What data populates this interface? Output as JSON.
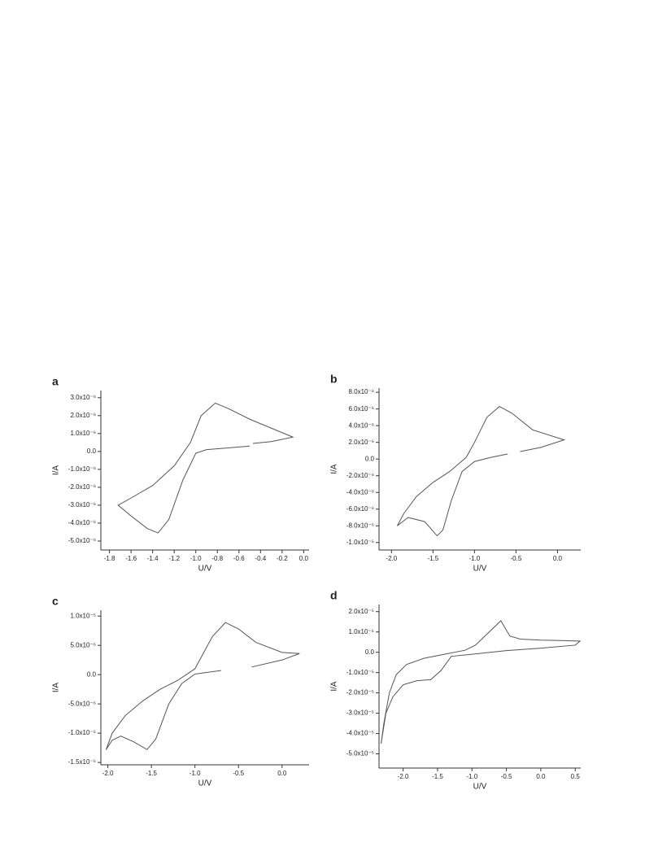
{
  "chart_data": [
    {
      "type": "line",
      "panel": "a",
      "xlabel": "U/V",
      "ylabel": "I/A",
      "xlim": [
        -1.88,
        0.05
      ],
      "ylim": [
        -5.5e-06,
        3.4e-06
      ],
      "xticks": [
        -1.8,
        -1.6,
        -1.4,
        -1.2,
        {
          "value": -1,
          "label": "-1.0"
        },
        -0.8,
        -0.6,
        -0.4,
        -0.2,
        {
          "value": 0,
          "label": "0.0"
        }
      ],
      "yticks": [
        {
          "value": 3e-06,
          "label": "3.0x10⁻⁶"
        },
        {
          "value": 2e-06,
          "label": "2.0x10⁻⁶"
        },
        {
          "value": 1e-06,
          "label": "1.0x10⁻⁶"
        },
        {
          "value": 0,
          "label": "0.0"
        },
        {
          "value": -1e-06,
          "label": "-1.0x10⁻⁶"
        },
        {
          "value": -2e-06,
          "label": "-2.0x10⁻⁶"
        },
        {
          "value": -3e-06,
          "label": "-3.0x10⁻⁶"
        },
        {
          "value": -4e-06,
          "label": "-4.0x10⁻⁶"
        },
        {
          "value": -5e-06,
          "label": "-5.0x10⁻⁶"
        }
      ],
      "series": [
        {
          "color": "#555555",
          "x": [
            -0.47,
            -0.3,
            -0.1,
            -0.3,
            -0.5,
            -0.7,
            -0.82,
            -0.95,
            -1.05,
            -1.2,
            -1.4,
            -1.6,
            -1.72,
            -1.6,
            -1.45,
            -1.35,
            -1.25,
            -1.12,
            -1.0,
            -0.9,
            -0.7,
            -0.5
          ],
          "values": [
            4.5e-07,
            5.5e-07,
            8e-07,
            1.3e-06,
            1.8e-06,
            2.4e-06,
            2.7e-06,
            2e-06,
            5e-07,
            -8e-07,
            -1.9e-06,
            -2.6e-06,
            -3e-06,
            -3.6e-06,
            -4.3e-06,
            -4.55e-06,
            -3.8e-06,
            -1.6e-06,
            -1e-07,
            1e-07,
            2e-07,
            3e-07
          ]
        }
      ]
    },
    {
      "type": "line",
      "panel": "b",
      "xlabel": "U/V",
      "ylabel": "I/A",
      "xlim": [
        -2.15,
        0.28
      ],
      "ylim": [
        -1.09e-05,
        8.5e-06
      ],
      "xticks": [
        {
          "value": -2,
          "label": "-2.0"
        },
        -1.5,
        {
          "value": -1,
          "label": "-1.0"
        },
        -0.5,
        {
          "value": 0,
          "label": "0.0"
        }
      ],
      "yticks": [
        {
          "value": 8e-06,
          "label": "8.0x10⁻⁶"
        },
        {
          "value": 6e-06,
          "label": "6.0x10⁻⁶"
        },
        {
          "value": 4e-06,
          "label": "4.0x10⁻⁶"
        },
        {
          "value": 2e-06,
          "label": "2.0x10⁻⁶"
        },
        {
          "value": 0,
          "label": "0.0"
        },
        {
          "value": -2e-06,
          "label": "-2.0x10⁻⁶"
        },
        {
          "value": -4e-06,
          "label": "-4.0x10⁻⁶"
        },
        {
          "value": -6e-06,
          "label": "-6.0x10⁻⁶"
        },
        {
          "value": -8e-06,
          "label": "-8.0x10⁻⁶"
        },
        {
          "value": -1e-05,
          "label": "-1.0x10⁻⁵"
        }
      ],
      "series": [
        {
          "color": "#555555",
          "x": [
            -0.45,
            -0.2,
            0.08,
            -0.3,
            -0.55,
            -0.7,
            -0.85,
            -1.0,
            -1.1,
            -1.3,
            -1.5,
            -1.7,
            -1.85,
            -1.93,
            -1.8,
            -1.6,
            -1.45,
            -1.38,
            -1.28,
            -1.15,
            -1.0,
            -0.8,
            -0.6
          ],
          "values": [
            9e-07,
            1.4e-06,
            2.3e-06,
            3.5e-06,
            5.5e-06,
            6.3e-06,
            5e-06,
            2e-06,
            2e-07,
            -1.5e-06,
            -2.8e-06,
            -4.5e-06,
            -6.5e-06,
            -8e-06,
            -7e-06,
            -7.5e-06,
            -9.2e-06,
            -8.5e-06,
            -5e-06,
            -1.5e-06,
            -3e-07,
            2e-07,
            6e-07
          ]
        }
      ]
    },
    {
      "type": "line",
      "panel": "c",
      "xlabel": "U/V",
      "ylabel": "I/A",
      "xlim": [
        -2.08,
        0.31
      ],
      "ylim": [
        -1.54e-05,
        1.1e-05
      ],
      "xticks": [
        {
          "value": -2,
          "label": "-2.0"
        },
        -1.5,
        {
          "value": -1,
          "label": "-1.0"
        },
        -0.5,
        {
          "value": 0,
          "label": "0.0"
        }
      ],
      "yticks": [
        {
          "value": 1e-05,
          "label": "1.0x10⁻⁵"
        },
        {
          "value": 5e-06,
          "label": "5.0x10⁻⁶"
        },
        {
          "value": 0,
          "label": "0.0"
        },
        {
          "value": -5e-06,
          "label": "-5.0x10⁻⁶"
        },
        {
          "value": -1e-05,
          "label": "-1.0x10⁻⁵"
        },
        {
          "value": -1.5e-05,
          "label": "-1.5x10⁻⁵"
        }
      ],
      "series": [
        {
          "color": "#555555",
          "x": [
            -0.35,
            0.0,
            0.2,
            0.0,
            -0.3,
            -0.5,
            -0.65,
            -0.8,
            -1.0,
            -1.2,
            -1.4,
            -1.6,
            -1.8,
            -1.95,
            -2.02,
            -1.95,
            -1.85,
            -1.7,
            -1.55,
            -1.45,
            -1.3,
            -1.15,
            -1.0,
            -0.7
          ],
          "values": [
            1.3e-06,
            2.5e-06,
            3.6e-06,
            3.8e-06,
            5.5e-06,
            7.8e-06,
            8.9e-06,
            6.5e-06,
            1e-06,
            -1e-06,
            -2.5e-06,
            -4.5e-06,
            -7e-06,
            -1e-05,
            -1.28e-05,
            -1.12e-05,
            -1.05e-05,
            -1.15e-05,
            -1.28e-05,
            -1.1e-05,
            -5e-06,
            -1.5e-06,
            1e-07,
            7e-07
          ]
        }
      ]
    },
    {
      "type": "line",
      "panel": "d",
      "xlabel": "U/V",
      "ylabel": "I/A",
      "xlim": [
        -2.35,
        0.58
      ],
      "ylim": [
        -5.7e-05,
        2.35e-05
      ],
      "xticks": [
        {
          "value": -2,
          "label": "-2.0"
        },
        -1.5,
        {
          "value": -1,
          "label": "-1.0"
        },
        -0.5,
        {
          "value": 0,
          "label": "0.0"
        },
        0.5
      ],
      "yticks": [
        {
          "value": 2e-05,
          "label": "2.0x10⁻⁵"
        },
        {
          "value": 1e-05,
          "label": "1.0x10⁻⁵"
        },
        {
          "value": 0,
          "label": "0.0"
        },
        {
          "value": -1e-05,
          "label": "-1.0x10⁻⁵"
        },
        {
          "value": -2e-05,
          "label": "-2.0x10⁻⁵"
        },
        {
          "value": -3e-05,
          "label": "-3.0x10⁻⁵"
        },
        {
          "value": -4e-05,
          "label": "-4.0x10⁻⁵"
        },
        {
          "value": -5e-05,
          "label": "-5.0x10⁻⁵"
        }
      ],
      "series": [
        {
          "color": "#555555",
          "x": [
            -2.32,
            -2.25,
            -2.15,
            -2.0,
            -1.8,
            -1.6,
            -1.45,
            -1.3,
            -1.0,
            -0.5,
            0.0,
            0.5,
            0.57,
            0.3,
            0.0,
            -0.3,
            -0.45,
            -0.58,
            -0.75,
            -0.95,
            -1.1,
            -1.4,
            -1.7,
            -1.95,
            -2.1,
            -2.2,
            -2.28,
            -2.32
          ],
          "values": [
            -4.5e-05,
            -3e-05,
            -2.2e-05,
            -1.6e-05,
            -1.4e-05,
            -1.35e-05,
            -9e-06,
            -2e-06,
            -1e-06,
            8e-07,
            2e-06,
            3.5e-06,
            5.5e-06,
            5.8e-06,
            6e-06,
            6.5e-06,
            8e-06,
            1.55e-05,
            1e-05,
            3.5e-06,
            1e-06,
            -1e-06,
            -3e-06,
            -6e-06,
            -1.1e-05,
            -2e-05,
            -3.5e-05,
            -4.5e-05
          ]
        }
      ]
    }
  ]
}
